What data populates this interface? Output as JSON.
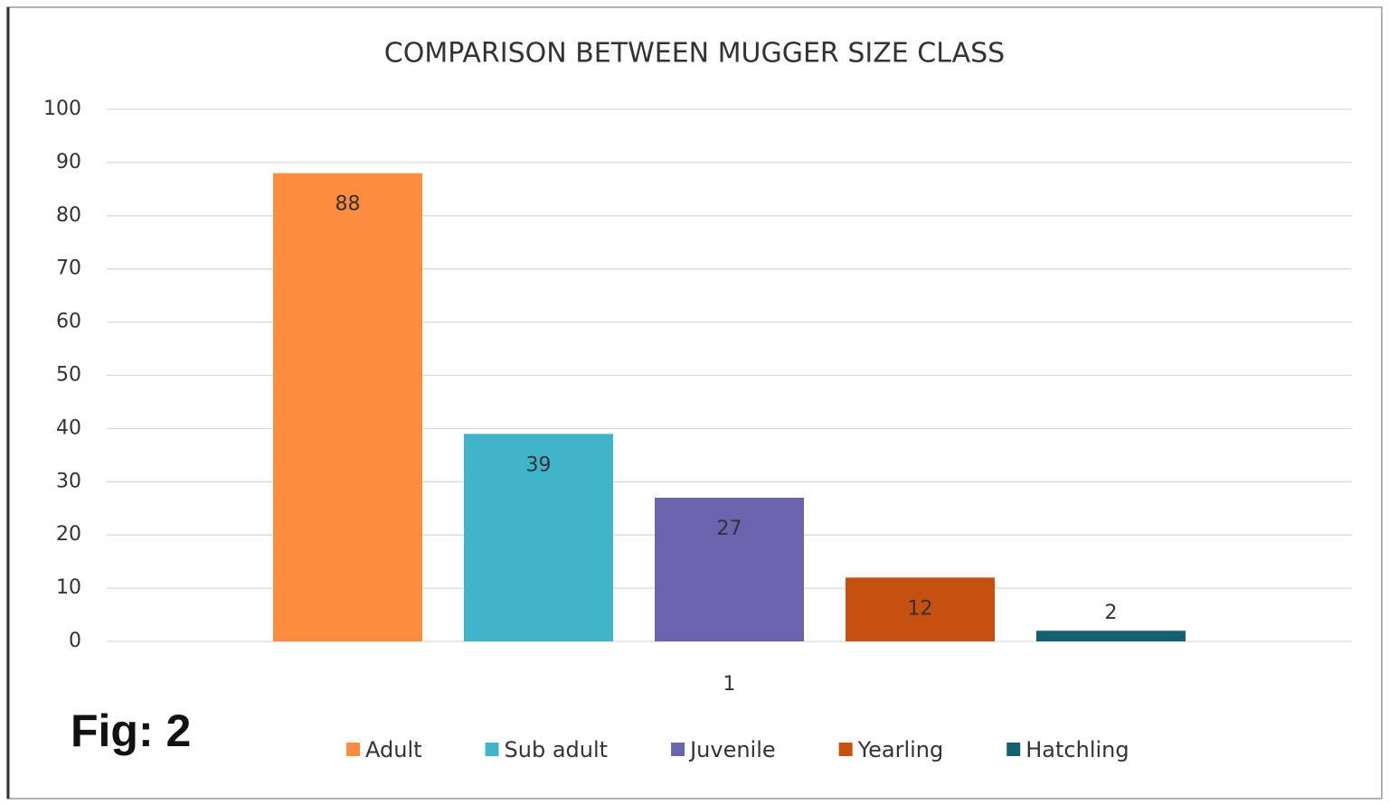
{
  "chart_data": {
    "type": "bar",
    "title": "COMPARISON BETWEEN MUGGER SIZE CLASS",
    "annotation": "Fig: 2",
    "categories": [
      "1"
    ],
    "series": [
      {
        "name": "Adult",
        "color": "#fd8c3e",
        "values": [
          88
        ]
      },
      {
        "name": "Sub adult",
        "color": "#40b4c9",
        "values": [
          39
        ]
      },
      {
        "name": "Juvenile",
        "color": "#6a64ae",
        "values": [
          27
        ]
      },
      {
        "name": "Yearling",
        "color": "#c6500f",
        "values": [
          12
        ]
      },
      {
        "name": "Hatchling",
        "color": "#165f70",
        "values": [
          2
        ]
      }
    ],
    "ylim": [
      0,
      100
    ],
    "yticks": [
      0,
      10,
      20,
      30,
      40,
      50,
      60,
      70,
      80,
      90,
      100
    ],
    "grid": true,
    "legend": "bottom"
  }
}
